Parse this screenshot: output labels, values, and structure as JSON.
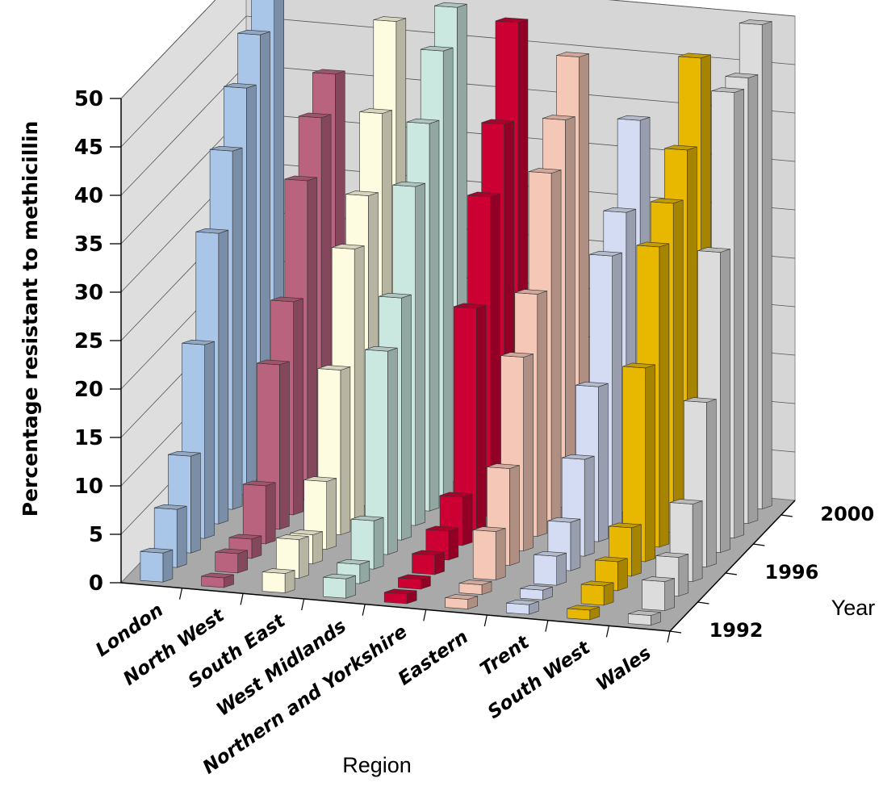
{
  "chart_data": {
    "type": "bar",
    "subtype": "3d-grouped-bar",
    "title": "",
    "ylabel": "Percentage resistant to methicillin",
    "xlabel": "Region",
    "zlabel": "Year",
    "ylim": [
      0,
      50
    ],
    "y_ticks": [
      "0",
      "5",
      "10",
      "15",
      "20",
      "25",
      "30",
      "35",
      "40",
      "45",
      "50"
    ],
    "years": [
      1992,
      1993,
      1994,
      1995,
      1996,
      1997,
      1998,
      1999,
      2000
    ],
    "year_tick_labels": [
      "1992",
      "1996",
      "2000"
    ],
    "categories": [
      "London",
      "North West",
      "South East",
      "West Midlands",
      "Northern and Yorkshire",
      "Eastern",
      "Trent",
      "South West",
      "Wales"
    ],
    "grid": true,
    "colors": {
      "London": "#a9c6e8",
      "North West": "#b9637f",
      "South East": "#fdfbe0",
      "West Midlands": "#cbe8e0",
      "Northern and Yorkshire": "#cc0033",
      "Eastern": "#f4c7b6",
      "Trent": "#d3dcf2",
      "South West": "#e8b800",
      "Wales": "#dcdcdc"
    },
    "series": [
      {
        "name": "London",
        "values": [
          3,
          6,
          10,
          20,
          30,
          37,
          42,
          46,
          50
        ]
      },
      {
        "name": "North West",
        "values": [
          1,
          2,
          2,
          6,
          17,
          22,
          33,
          38,
          41
        ]
      },
      {
        "name": "South East",
        "values": [
          2,
          4,
          3,
          7,
          17,
          28,
          32,
          39,
          47
        ]
      },
      {
        "name": "West Midlands",
        "values": [
          2,
          2,
          5,
          21,
          25,
          35,
          40,
          46,
          49
        ]
      },
      {
        "name": "Northern and Yorkshire",
        "values": [
          1,
          1,
          2,
          3,
          5,
          23,
          33,
          39,
          48
        ]
      },
      {
        "name": "Eastern",
        "values": [
          1,
          1,
          5,
          10,
          20,
          25,
          36,
          40,
          45
        ]
      },
      {
        "name": "Trent",
        "values": [
          1,
          1,
          3,
          5,
          10,
          16,
          28,
          31,
          39
        ]
      },
      {
        "name": "South West",
        "values": [
          1,
          2,
          3,
          5,
          20,
          31,
          34,
          38,
          46
        ]
      },
      {
        "name": "Wales",
        "values": [
          1,
          3,
          4,
          8,
          17,
          31,
          46,
          46,
          50
        ]
      }
    ]
  }
}
